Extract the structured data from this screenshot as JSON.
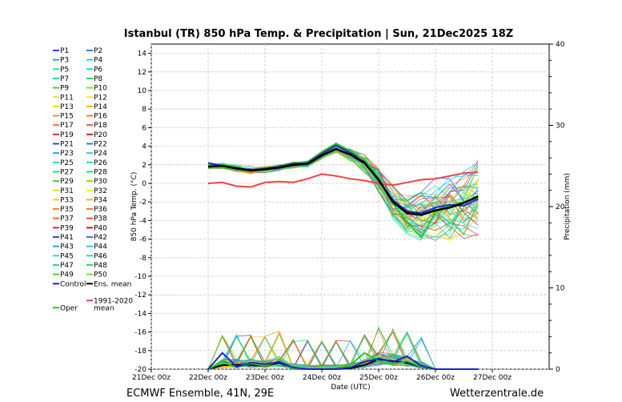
{
  "chart_data": {
    "type": "line",
    "title": "Istanbul  (TR)  850 hPa Temp. & Precipitation | Sun, 21Dec2025 18Z",
    "xlabel": "Date (UTC)",
    "ylabel": "850 hPa Temp. (°C)",
    "ylabel_right": "Precipitation (mm)",
    "ylim": [
      -20,
      15
    ],
    "ylim_right": [
      0,
      40
    ],
    "x_hours": [
      0,
      6,
      12,
      18,
      24,
      30,
      36,
      42,
      48,
      54,
      60,
      66,
      72,
      78,
      84,
      90,
      96,
      102,
      108,
      114,
      120,
      126,
      132,
      138,
      144,
      150,
      156,
      162,
      168
    ],
    "xticks": [
      {
        "h": 0,
        "label": "21Dec 00z"
      },
      {
        "h": 24,
        "label": "22Dec 00z"
      },
      {
        "h": 48,
        "label": "23Dec 00z"
      },
      {
        "h": 72,
        "label": "24Dec 00z"
      },
      {
        "h": 96,
        "label": "25Dec 00z"
      },
      {
        "h": 120,
        "label": "26Dec 00z"
      },
      {
        "h": 144,
        "label": "27Dec 00z"
      }
    ],
    "yticks": [
      14,
      12,
      10,
      8,
      6,
      4,
      2,
      0,
      -2,
      -4,
      -6,
      -8,
      -10,
      -12,
      -14,
      -16,
      -18,
      -20
    ],
    "yticks_right": [
      0,
      10,
      20,
      30,
      40
    ],
    "series": [
      {
        "name": "Ens. mean",
        "color": "#000000",
        "start": 24,
        "values": [
          1.8,
          1.9,
          1.6,
          1.4,
          1.5,
          1.7,
          2.0,
          2.1,
          3.0,
          3.7,
          3.1,
          2.2,
          0.4,
          -2.0,
          -3.2,
          -3.4,
          -2.9,
          -2.6,
          -2.1,
          -1.4
        ]
      },
      {
        "name": "1991-2020 mean",
        "color": "#ee4444",
        "start": 24,
        "values": [
          0.0,
          0.1,
          -0.3,
          -0.4,
          0.1,
          0.2,
          0.1,
          0.5,
          1.0,
          0.8,
          0.5,
          0.3,
          0.0,
          -0.2,
          0.1,
          0.4,
          0.5,
          0.8,
          1.1,
          1.2
        ]
      },
      {
        "name": "Oper",
        "color": "#22cc22",
        "start": 24,
        "values": [
          2.0,
          1.8,
          1.5,
          1.3,
          1.5,
          1.8,
          2.2,
          2.3,
          3.4,
          4.3,
          3.5,
          2.6,
          0.6,
          -2.2,
          -4.2,
          -5.8,
          -3.1,
          -2.4,
          -2.0,
          -1.6
        ]
      },
      {
        "name": "Control",
        "color": "#2222cc",
        "start": 24,
        "values": [
          2.2,
          1.9,
          1.7,
          1.4,
          1.6,
          1.8,
          2.1,
          2.2,
          3.2,
          4.1,
          3.3,
          2.3,
          0.3,
          -1.8,
          -3.0,
          -3.2,
          -2.6,
          -2.3,
          -2.4,
          -1.7
        ]
      }
    ],
    "precip_series": [
      {
        "name": "Ens. mean",
        "color": "#000000",
        "start": 24,
        "values": [
          0.0,
          0.5,
          0.5,
          0.5,
          0.4,
          0.8,
          0.1,
          0.0,
          0.0,
          0.0,
          0.1,
          0.5,
          1.2,
          1.0,
          0.8,
          0.3,
          0.0,
          0.0,
          0.0,
          0.0
        ]
      },
      {
        "name": "Oper",
        "color": "#22cc22",
        "start": 24,
        "values": [
          0.0,
          0.9,
          0.2,
          0.7,
          0.4,
          1.0,
          0.0,
          0.0,
          0.0,
          0.0,
          0.5,
          2.0,
          1.0,
          0.6,
          1.0,
          0.3,
          0.0,
          0.0,
          0.0,
          0.0
        ]
      },
      {
        "name": "Control",
        "color": "#2222cc",
        "start": 24,
        "values": [
          0.0,
          2.0,
          0.3,
          0.8,
          0.6,
          0.9,
          0.2,
          0.0,
          0.0,
          0.0,
          0.2,
          0.9,
          1.3,
          0.9,
          1.6,
          0.4,
          0.0,
          0.0,
          0.0,
          0.0
        ]
      }
    ],
    "legend_members": [
      "P1",
      "P2",
      "P3",
      "P4",
      "P5",
      "P6",
      "P7",
      "P8",
      "P9",
      "P10",
      "P11",
      "P12",
      "P13",
      "P14",
      "P15",
      "P16",
      "P17",
      "P18",
      "P19",
      "P20",
      "P21",
      "P22",
      "P23",
      "P24",
      "P25",
      "P26",
      "P27",
      "P28",
      "P29",
      "P30",
      "P31",
      "P32",
      "P33",
      "P34",
      "P35",
      "P36",
      "P37",
      "P38",
      "P39",
      "P40",
      "P41",
      "P42",
      "P43",
      "P44",
      "P45",
      "P46",
      "P47",
      "P48",
      "P49",
      "P50"
    ],
    "legend_member_colors": [
      "#3344dd",
      "#3377ee",
      "#22aadd",
      "#22ccee",
      "#22ddcc",
      "#22ddaa",
      "#22dd88",
      "#22dd66",
      "#33dd33",
      "#66ee22",
      "#ccee22",
      "#eeee22",
      "#ffcc22",
      "#ffaa22",
      "#ff8822",
      "#ff7722",
      "#ff6633",
      "#ee5533",
      "#cc3333",
      "#bb2222"
    ],
    "legend_extra": [
      "Control",
      "Ens. mean",
      "1991-2020",
      "mean",
      "Oper"
    ],
    "footer_left": "ECMWF Ensemble, 41N, 29E",
    "footer_right": "Wetterzentrale.de"
  }
}
